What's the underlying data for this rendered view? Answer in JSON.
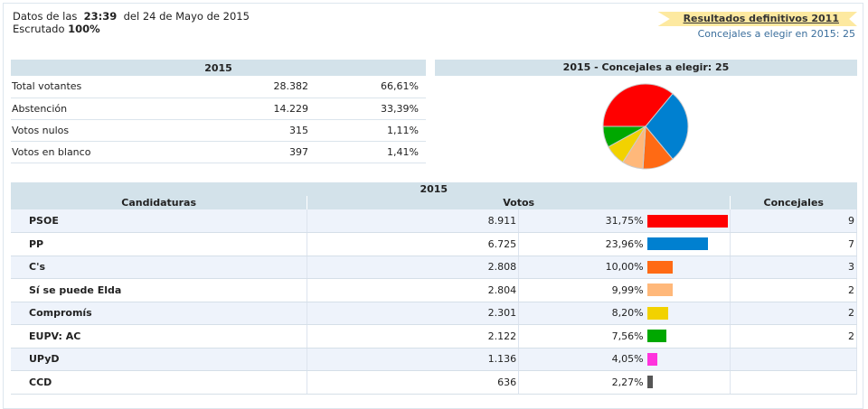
{
  "header": {
    "datos_prefix": "Datos de las",
    "time": "23:39",
    "date_text": "del 24 de Mayo de 2015",
    "escrutado_label": "Escrutado",
    "escrutado_value": "100%"
  },
  "ribbon": {
    "link": "Resultados definitivos 2011",
    "concejales": "Concejales a elegir en 2015: 25"
  },
  "summary": {
    "title": "2015",
    "rows": [
      {
        "label": "Total votantes",
        "value": "28.382",
        "pct": "66,61%"
      },
      {
        "label": "Abstención",
        "value": "14.229",
        "pct": "33,39%"
      },
      {
        "label": "Votos nulos",
        "value": "315",
        "pct": "1,11%"
      },
      {
        "label": "Votos en blanco",
        "value": "397",
        "pct": "1,41%"
      }
    ]
  },
  "pie": {
    "title": "2015 - Concejales a elegir: 25"
  },
  "results": {
    "title": "2015",
    "col_candidaturas": "Candidaturas",
    "col_votos": "Votos",
    "col_concejales": "Concejales",
    "rows": [
      {
        "name": "PSOE",
        "votes": "8.911",
        "pct": "31,75%",
        "pct_value": 31.75,
        "seats": "9",
        "color": "#ff0000"
      },
      {
        "name": "PP",
        "votes": "6.725",
        "pct": "23,96%",
        "pct_value": 23.96,
        "seats": "7",
        "color": "#0080d0"
      },
      {
        "name": "C's",
        "votes": "2.808",
        "pct": "10,00%",
        "pct_value": 10.0,
        "seats": "3",
        "color": "#ff6a14"
      },
      {
        "name": "Sí se puede Elda",
        "votes": "2.804",
        "pct": "9,99%",
        "pct_value": 9.99,
        "seats": "2",
        "color": "#ffb87a"
      },
      {
        "name": "Compromís",
        "votes": "2.301",
        "pct": "8,20%",
        "pct_value": 8.2,
        "seats": "2",
        "color": "#f2d200"
      },
      {
        "name": "EUPV: AC",
        "votes": "2.122",
        "pct": "7,56%",
        "pct_value": 7.56,
        "seats": "2",
        "color": "#00a800"
      },
      {
        "name": "UPyD",
        "votes": "1.136",
        "pct": "4,05%",
        "pct_value": 4.05,
        "seats": "",
        "color": "#ff33dd"
      },
      {
        "name": "CCD",
        "votes": "636",
        "pct": "2,27%",
        "pct_value": 2.27,
        "seats": "",
        "color": "#555555"
      }
    ]
  }
}
